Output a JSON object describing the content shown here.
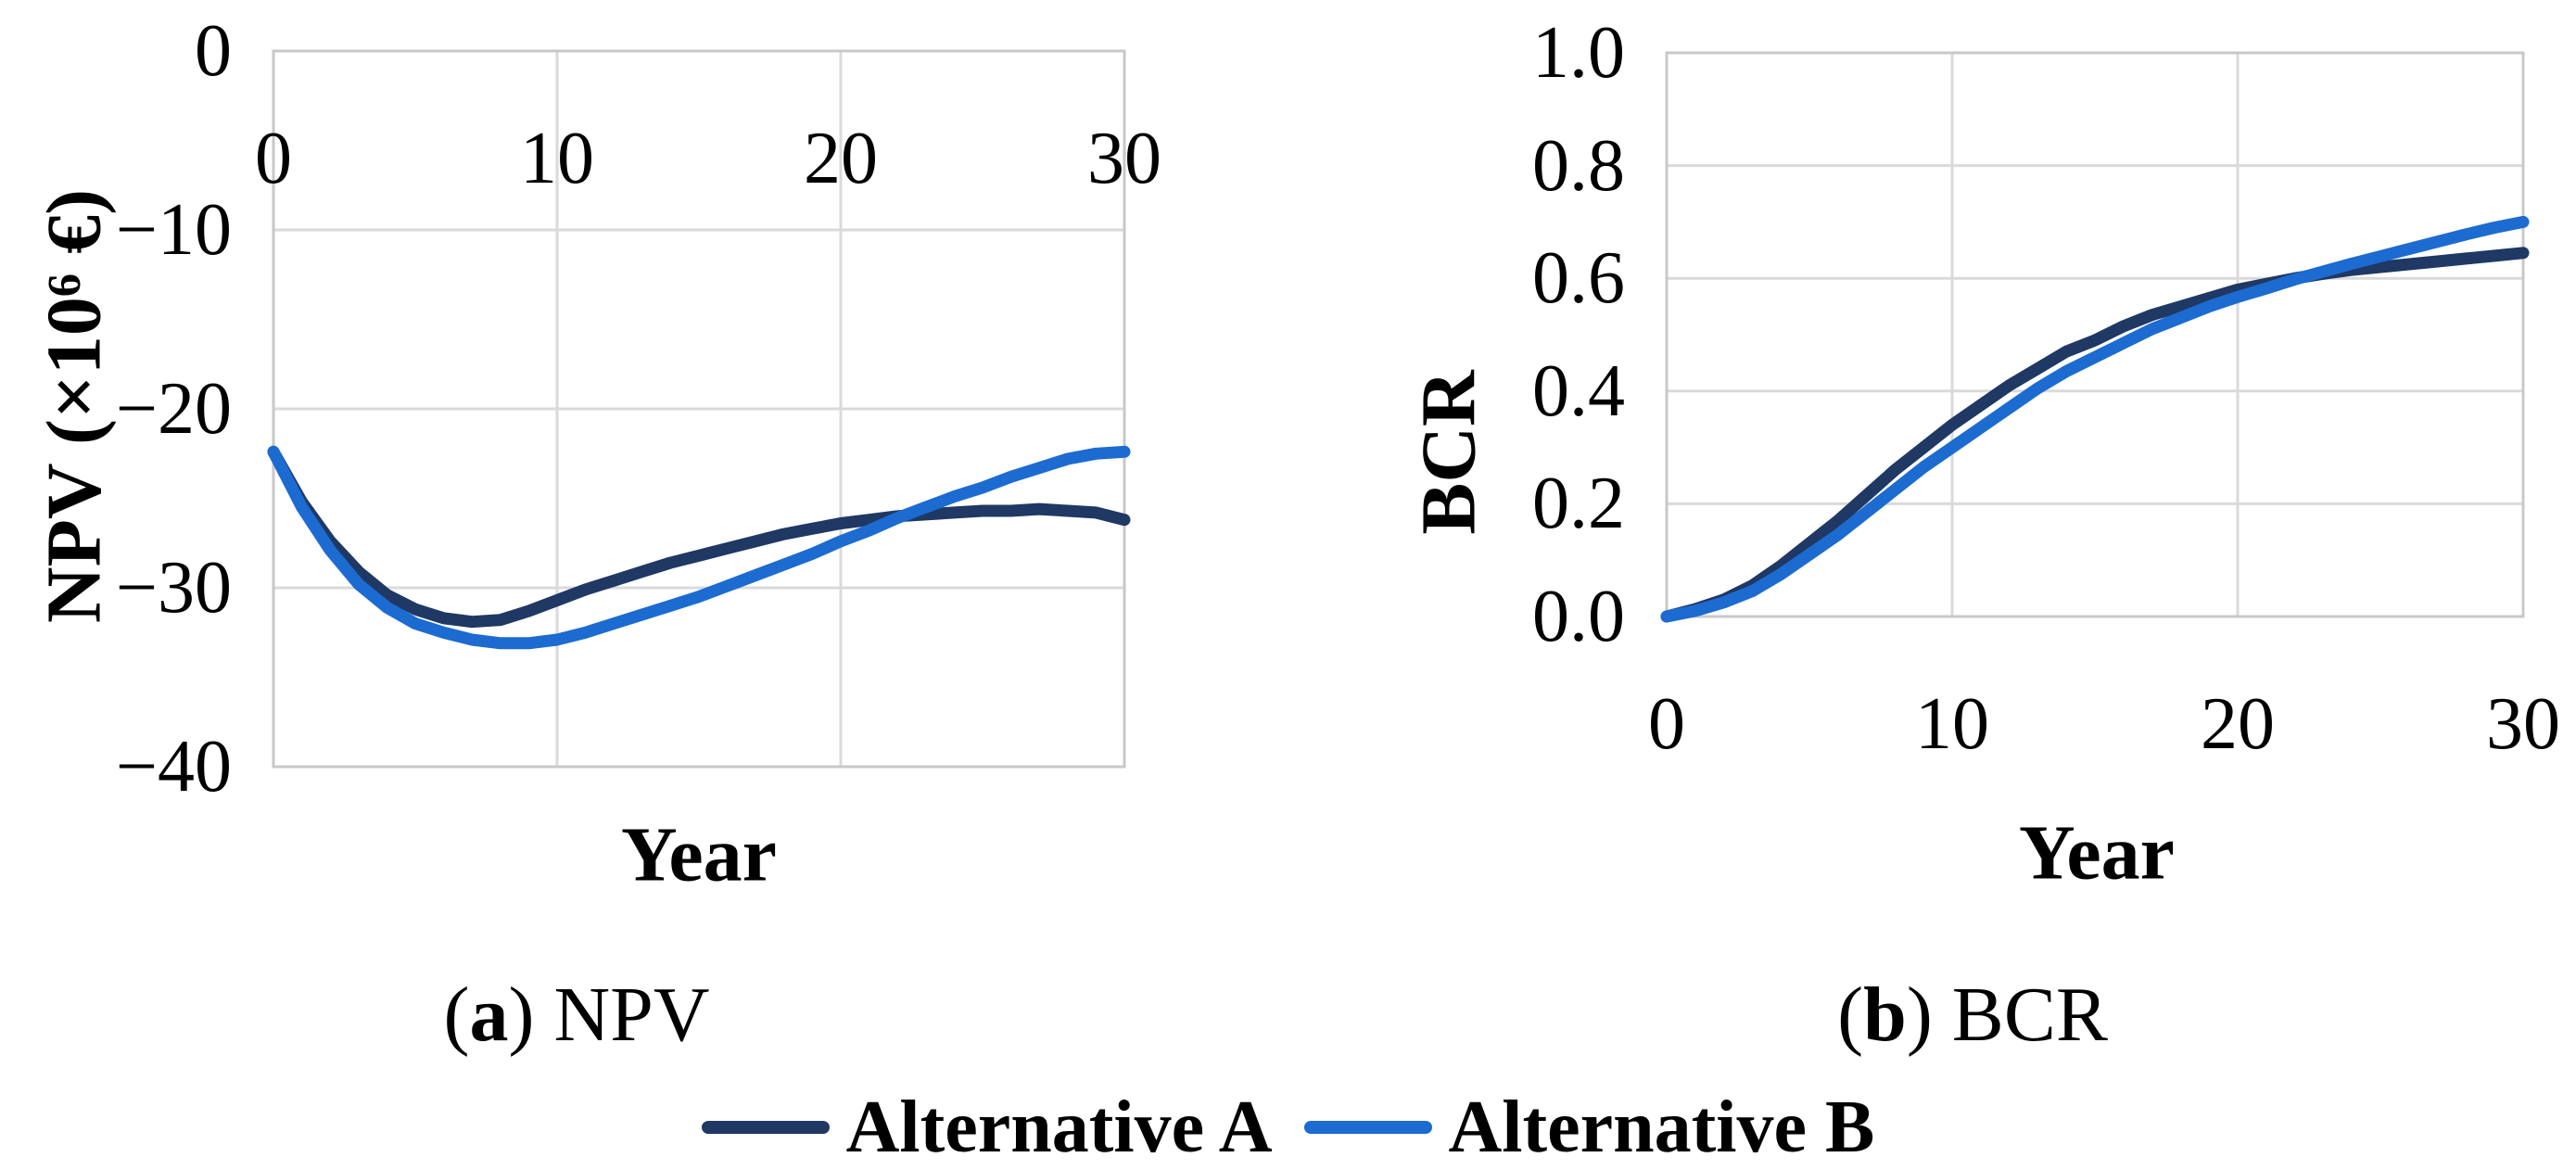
{
  "figure": {
    "captions": {
      "a": {
        "paren_open": "(",
        "letter": "a",
        "paren_close": ")",
        "text": " NPV"
      },
      "b": {
        "paren_open": "(",
        "letter": "b",
        "paren_close": ")",
        "text": " BCR"
      }
    },
    "legend": {
      "items": [
        {
          "label": "Alternative A",
          "color": "#1F3864"
        },
        {
          "label": "Alternative B",
          "color": "#1C6BD0"
        }
      ]
    },
    "colors": {
      "alternative_a": "#1F3864",
      "alternative_b": "#1C6BD0",
      "gridline": "#DADADA",
      "plot_border": "#C8C8C8"
    }
  },
  "chart_data": [
    {
      "id": "npv",
      "type": "line",
      "title": "",
      "xlabel": "Year",
      "ylabel": "NPV (×10⁶ €)",
      "xlim": [
        0,
        30
      ],
      "ylim": [
        -40,
        0
      ],
      "grid": true,
      "xticks": [
        0,
        10,
        20,
        30
      ],
      "xtick_labels": [
        "0",
        "10",
        "20",
        "30"
      ],
      "yticks": [
        0,
        -10,
        -20,
        -30,
        -40
      ],
      "ytick_labels": [
        "0",
        "−10",
        "−20",
        "−30",
        "−40"
      ],
      "x": [
        0,
        1,
        2,
        3,
        4,
        5,
        6,
        7,
        8,
        9,
        10,
        11,
        12,
        13,
        14,
        15,
        16,
        17,
        18,
        19,
        20,
        21,
        22,
        23,
        24,
        25,
        26,
        27,
        28,
        29,
        30
      ],
      "series": [
        {
          "name": "Alternative A",
          "color": "#1F3864",
          "values": [
            -22.4,
            -25.2,
            -27.4,
            -29.1,
            -30.4,
            -31.2,
            -31.7,
            -31.9,
            -31.8,
            -31.3,
            -30.7,
            -30.1,
            -29.6,
            -29.1,
            -28.6,
            -28.2,
            -27.8,
            -27.4,
            -27.0,
            -26.7,
            -26.4,
            -26.2,
            -26.0,
            -25.9,
            -25.8,
            -25.7,
            -25.7,
            -25.6,
            -25.7,
            -25.8,
            -26.2
          ]
        },
        {
          "name": "Alternative B",
          "color": "#1C6BD0",
          "values": [
            -22.4,
            -25.5,
            -27.9,
            -29.8,
            -31.1,
            -32.0,
            -32.5,
            -32.9,
            -33.1,
            -33.1,
            -32.9,
            -32.5,
            -32.0,
            -31.5,
            -31.0,
            -30.5,
            -29.9,
            -29.3,
            -28.7,
            -28.1,
            -27.4,
            -26.8,
            -26.1,
            -25.5,
            -24.9,
            -24.4,
            -23.8,
            -23.3,
            -22.8,
            -22.5,
            -22.4
          ]
        }
      ]
    },
    {
      "id": "bcr",
      "type": "line",
      "title": "",
      "xlabel": "Year",
      "ylabel": "BCR",
      "xlim": [
        0,
        30
      ],
      "ylim": [
        0,
        1
      ],
      "grid": true,
      "xticks": [
        0,
        10,
        20,
        30
      ],
      "xtick_labels": [
        "0",
        "10",
        "20",
        "30"
      ],
      "yticks": [
        1.0,
        0.8,
        0.6,
        0.4,
        0.2,
        0.0
      ],
      "ytick_labels": [
        "1.0",
        "0.8",
        "0.6",
        "0.4",
        "0.2",
        "0.0"
      ],
      "x": [
        0,
        1,
        2,
        3,
        4,
        5,
        6,
        7,
        8,
        9,
        10,
        11,
        12,
        13,
        14,
        15,
        16,
        17,
        18,
        19,
        20,
        21,
        22,
        23,
        24,
        25,
        26,
        27,
        28,
        29,
        30
      ],
      "series": [
        {
          "name": "Alternative A",
          "color": "#1F3864",
          "values": [
            0.0,
            0.013,
            0.03,
            0.055,
            0.09,
            0.13,
            0.17,
            0.215,
            0.26,
            0.3,
            0.34,
            0.375,
            0.41,
            0.44,
            0.47,
            0.49,
            0.515,
            0.535,
            0.55,
            0.565,
            0.58,
            0.59,
            0.6,
            0.608,
            0.615,
            0.62,
            0.625,
            0.63,
            0.635,
            0.64,
            0.645
          ]
        },
        {
          "name": "Alternative B",
          "color": "#1C6BD0",
          "values": [
            0.0,
            0.01,
            0.025,
            0.045,
            0.075,
            0.11,
            0.145,
            0.185,
            0.225,
            0.265,
            0.3,
            0.335,
            0.37,
            0.405,
            0.435,
            0.46,
            0.485,
            0.51,
            0.53,
            0.55,
            0.567,
            0.582,
            0.598,
            0.612,
            0.626,
            0.639,
            0.652,
            0.665,
            0.678,
            0.69,
            0.7
          ]
        }
      ]
    }
  ]
}
